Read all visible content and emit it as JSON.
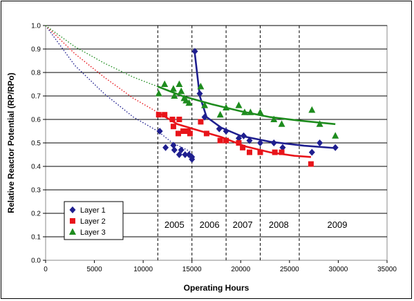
{
  "chart_data": {
    "type": "scatter",
    "title": "",
    "xlabel": "Operating Hours",
    "ylabel": "Relative Reactor Potential (RP/RPo)",
    "xlim": [
      0,
      35000
    ],
    "ylim": [
      0,
      1.0
    ],
    "x_ticks": [
      0,
      5000,
      10000,
      15000,
      20000,
      25000,
      30000,
      35000
    ],
    "y_ticks": [
      0.0,
      0.1,
      0.2,
      0.3,
      0.4,
      0.5,
      0.6,
      0.7,
      0.8,
      0.9,
      1.0
    ],
    "x_tick_labels": [
      "0",
      "5000",
      "10000",
      "15000",
      "20000",
      "25000",
      "30000",
      "35000"
    ],
    "y_tick_labels": [
      "0.0",
      "0.1",
      "0.2",
      "0.3",
      "0.4",
      "0.5",
      "0.6",
      "0.7",
      "0.8",
      "0.9",
      "1.0"
    ],
    "grid": "horizontal",
    "legend_position": "bottom-left",
    "year_dividers": [
      11500,
      15000,
      18500,
      22000,
      26000
    ],
    "year_labels": [
      {
        "label": "2005",
        "x": 13200,
        "y": 0.15
      },
      {
        "label": "2006",
        "x": 16800,
        "y": 0.15
      },
      {
        "label": "2007",
        "x": 20200,
        "y": 0.15
      },
      {
        "label": "2008",
        "x": 23900,
        "y": 0.15
      },
      {
        "label": "2009",
        "x": 29900,
        "y": 0.15
      }
    ],
    "series": [
      {
        "name": "Layer 1",
        "color": "#1f1f8f",
        "marker": "diamond",
        "points": [
          {
            "x": 11700,
            "y": 0.55
          },
          {
            "x": 12300,
            "y": 0.48
          },
          {
            "x": 13100,
            "y": 0.49
          },
          {
            "x": 13200,
            "y": 0.47
          },
          {
            "x": 13700,
            "y": 0.45
          },
          {
            "x": 13900,
            "y": 0.47
          },
          {
            "x": 14300,
            "y": 0.45
          },
          {
            "x": 14700,
            "y": 0.45
          },
          {
            "x": 15000,
            "y": 0.44
          },
          {
            "x": 15000,
            "y": 0.43
          },
          {
            "x": 15300,
            "y": 0.89
          },
          {
            "x": 15800,
            "y": 0.71
          },
          {
            "x": 16300,
            "y": 0.61
          },
          {
            "x": 17800,
            "y": 0.56
          },
          {
            "x": 18500,
            "y": 0.55
          },
          {
            "x": 19800,
            "y": 0.52
          },
          {
            "x": 20300,
            "y": 0.53
          },
          {
            "x": 20900,
            "y": 0.51
          },
          {
            "x": 22000,
            "y": 0.5
          },
          {
            "x": 23400,
            "y": 0.5
          },
          {
            "x": 24300,
            "y": 0.48
          },
          {
            "x": 27300,
            "y": 0.46
          },
          {
            "x": 28100,
            "y": 0.5
          },
          {
            "x": 29700,
            "y": 0.48
          }
        ],
        "fit_early": [
          [
            0,
            1.0
          ],
          [
            3000,
            0.83
          ],
          [
            6000,
            0.71
          ],
          [
            9000,
            0.61
          ],
          [
            11500,
            0.55
          ],
          [
            13000,
            0.5
          ],
          [
            15000,
            0.46
          ]
        ],
        "fit_late": [
          [
            15300,
            0.88
          ],
          [
            15800,
            0.7
          ],
          [
            16500,
            0.61
          ],
          [
            18000,
            0.565
          ],
          [
            20000,
            0.53
          ],
          [
            23000,
            0.505
          ],
          [
            26500,
            0.488
          ],
          [
            29700,
            0.478
          ]
        ]
      },
      {
        "name": "Layer 2",
        "color": "#e8141a",
        "marker": "square",
        "points": [
          {
            "x": 11600,
            "y": 0.62
          },
          {
            "x": 12200,
            "y": 0.62
          },
          {
            "x": 13000,
            "y": 0.6
          },
          {
            "x": 13100,
            "y": 0.57
          },
          {
            "x": 13700,
            "y": 0.6
          },
          {
            "x": 13600,
            "y": 0.54
          },
          {
            "x": 14100,
            "y": 0.55
          },
          {
            "x": 14600,
            "y": 0.55
          },
          {
            "x": 14800,
            "y": 0.54
          },
          {
            "x": 15900,
            "y": 0.59
          },
          {
            "x": 16500,
            "y": 0.54
          },
          {
            "x": 17900,
            "y": 0.51
          },
          {
            "x": 18500,
            "y": 0.51
          },
          {
            "x": 19800,
            "y": 0.5
          },
          {
            "x": 20200,
            "y": 0.48
          },
          {
            "x": 20900,
            "y": 0.46
          },
          {
            "x": 22000,
            "y": 0.46
          },
          {
            "x": 23500,
            "y": 0.46
          },
          {
            "x": 24200,
            "y": 0.46
          },
          {
            "x": 27200,
            "y": 0.41
          }
        ],
        "fit_early": [
          [
            0,
            1.0
          ],
          [
            3000,
            0.88
          ],
          [
            6000,
            0.78
          ],
          [
            9000,
            0.69
          ],
          [
            11500,
            0.63
          ]
        ],
        "fit_late": [
          [
            11500,
            0.63
          ],
          [
            13500,
            0.58
          ],
          [
            15500,
            0.555
          ],
          [
            18000,
            0.525
          ],
          [
            20500,
            0.485
          ],
          [
            23000,
            0.46
          ],
          [
            25500,
            0.445
          ],
          [
            27200,
            0.44
          ]
        ]
      },
      {
        "name": "Layer 3",
        "color": "#1e8c1e",
        "marker": "triangle",
        "points": [
          {
            "x": 11600,
            "y": 0.71
          },
          {
            "x": 12200,
            "y": 0.75
          },
          {
            "x": 13100,
            "y": 0.73
          },
          {
            "x": 13200,
            "y": 0.7
          },
          {
            "x": 13700,
            "y": 0.75
          },
          {
            "x": 13900,
            "y": 0.72
          },
          {
            "x": 14200,
            "y": 0.69
          },
          {
            "x": 14400,
            "y": 0.68
          },
          {
            "x": 14700,
            "y": 0.67
          },
          {
            "x": 15900,
            "y": 0.74
          },
          {
            "x": 16300,
            "y": 0.66
          },
          {
            "x": 17900,
            "y": 0.62
          },
          {
            "x": 18500,
            "y": 0.65
          },
          {
            "x": 19800,
            "y": 0.66
          },
          {
            "x": 20400,
            "y": 0.63
          },
          {
            "x": 21000,
            "y": 0.63
          },
          {
            "x": 22000,
            "y": 0.63
          },
          {
            "x": 23400,
            "y": 0.6
          },
          {
            "x": 24200,
            "y": 0.58
          },
          {
            "x": 27300,
            "y": 0.64
          },
          {
            "x": 28100,
            "y": 0.58
          },
          {
            "x": 29700,
            "y": 0.53
          }
        ],
        "fit_early": [
          [
            0,
            1.0
          ],
          [
            3000,
            0.91
          ],
          [
            6000,
            0.84
          ],
          [
            9000,
            0.78
          ],
          [
            11500,
            0.74
          ]
        ],
        "fit_late": [
          [
            11500,
            0.74
          ],
          [
            14000,
            0.7
          ],
          [
            17000,
            0.665
          ],
          [
            20000,
            0.635
          ],
          [
            23000,
            0.61
          ],
          [
            26000,
            0.595
          ],
          [
            29700,
            0.58
          ]
        ]
      }
    ]
  }
}
